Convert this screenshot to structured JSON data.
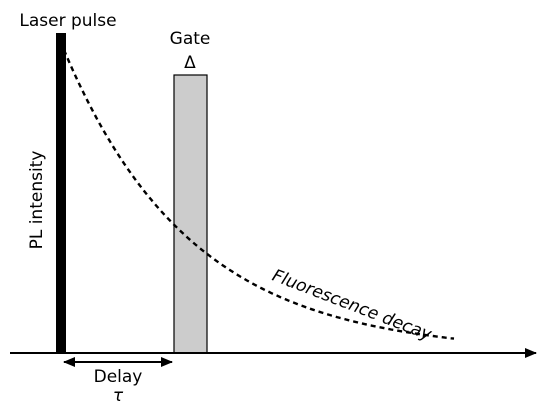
{
  "labels": {
    "laser_pulse": "Laser pulse",
    "gate": "Gate",
    "gate_width": "Δ",
    "y_axis": "PL intensity",
    "decay": "Fluorescence decay",
    "delay": "Delay",
    "delay_symbol": "τ"
  }
}
